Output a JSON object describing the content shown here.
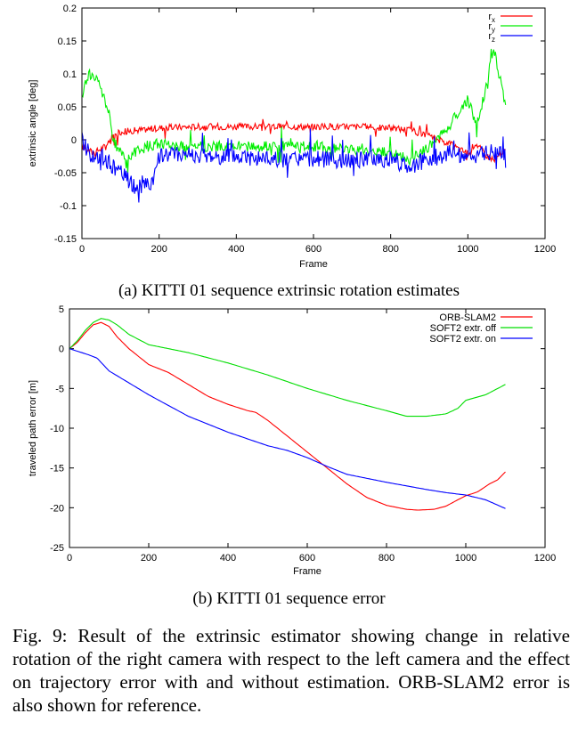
{
  "charts": [
    {
      "type": "line",
      "title": "",
      "subcaption": "(a) KITTI 01 sequence extrinsic rotation estimates",
      "xlabel": "Frame",
      "ylabel": "extrinsic angle [deg]",
      "xlim": [
        0,
        1200
      ],
      "ylim": [
        -0.15,
        0.2
      ],
      "xticks": [
        "0",
        "200",
        "400",
        "600",
        "800",
        "1000",
        "1200"
      ],
      "yticks": [
        "-0.15",
        "-0.1",
        "-0.05",
        "0",
        "0.05",
        "0.1",
        "0.15",
        "0.2"
      ],
      "legend": "top-right",
      "series": [
        {
          "name": "r",
          "sub": "x",
          "color": "#ff0000",
          "x": [
            0,
            30,
            60,
            80,
            100,
            150,
            200,
            300,
            400,
            500,
            600,
            700,
            800,
            850,
            900,
            950,
            980,
            1000,
            1020,
            1050,
            1070,
            1090,
            1100
          ],
          "y": [
            -0.01,
            -0.02,
            -0.01,
            0.005,
            0.012,
            0.015,
            0.018,
            0.02,
            0.02,
            0.02,
            0.02,
            0.02,
            0.018,
            0.015,
            0.005,
            -0.005,
            -0.015,
            -0.02,
            -0.005,
            -0.025,
            -0.03,
            -0.02,
            -0.015
          ],
          "noise": 0.005
        },
        {
          "name": "r",
          "sub": "y",
          "color": "#00ee00",
          "x": [
            0,
            10,
            20,
            40,
            60,
            70,
            80,
            100,
            120,
            150,
            200,
            250,
            300,
            400,
            500,
            600,
            700,
            800,
            850,
            900,
            950,
            980,
            1000,
            1010,
            1020,
            1030,
            1050,
            1060,
            1070,
            1080,
            1090,
            1100
          ],
          "y": [
            0.06,
            0.09,
            0.1,
            0.09,
            0.06,
            0.04,
            0.0,
            -0.02,
            -0.025,
            -0.015,
            -0.005,
            -0.01,
            -0.01,
            -0.01,
            -0.01,
            -0.01,
            -0.015,
            -0.02,
            -0.03,
            -0.01,
            0.02,
            0.045,
            0.06,
            0.045,
            0.02,
            0.04,
            0.085,
            0.13,
            0.135,
            0.1,
            0.08,
            0.055
          ],
          "noise": 0.008
        },
        {
          "name": "r",
          "sub": "z",
          "color": "#0000ff",
          "x": [
            0,
            20,
            40,
            60,
            80,
            100,
            120,
            140,
            160,
            180,
            200,
            250,
            300,
            400,
            500,
            600,
            700,
            800,
            850,
            900,
            950,
            1000,
            1050,
            1100
          ],
          "y": [
            0.0,
            -0.02,
            -0.03,
            -0.03,
            -0.04,
            -0.05,
            -0.06,
            -0.075,
            -0.065,
            -0.07,
            -0.025,
            -0.02,
            -0.025,
            -0.025,
            -0.03,
            -0.03,
            -0.03,
            -0.03,
            -0.04,
            -0.03,
            -0.02,
            -0.025,
            -0.02,
            -0.02
          ],
          "noise": 0.013
        }
      ]
    },
    {
      "type": "line",
      "title": "",
      "subcaption": "(b) KITTI 01 sequence error",
      "xlabel": "Frame",
      "ylabel": "traveled path error [m]",
      "xlim": [
        0,
        1200
      ],
      "ylim": [
        -25,
        5
      ],
      "xticks": [
        "0",
        "200",
        "400",
        "600",
        "800",
        "1000",
        "1200"
      ],
      "yticks": [
        "-25",
        "-20",
        "-15",
        "-10",
        "-5",
        "0",
        "5"
      ],
      "legend": "top-right",
      "series": [
        {
          "name": "ORB-SLAM2",
          "color": "#ff0000",
          "x": [
            0,
            20,
            40,
            60,
            80,
            100,
            120,
            150,
            200,
            250,
            300,
            350,
            400,
            450,
            470,
            500,
            550,
            600,
            650,
            700,
            750,
            800,
            850,
            880,
            920,
            950,
            980,
            1000,
            1030,
            1060,
            1080,
            1100
          ],
          "y": [
            0,
            0.8,
            2.0,
            3.0,
            3.3,
            2.8,
            1.5,
            0.0,
            -2.0,
            -3.0,
            -4.5,
            -6.0,
            -7.0,
            -7.8,
            -8.0,
            -9.0,
            -11.0,
            -13.0,
            -15.0,
            -17.0,
            -18.7,
            -19.7,
            -20.2,
            -20.3,
            -20.2,
            -19.8,
            -19.0,
            -18.5,
            -18.0,
            -17.0,
            -16.5,
            -15.5
          ]
        },
        {
          "name": "SOFT2 extr. off",
          "color": "#00dd00",
          "x": [
            0,
            20,
            40,
            60,
            80,
            100,
            120,
            150,
            200,
            250,
            300,
            400,
            500,
            600,
            700,
            800,
            850,
            900,
            950,
            980,
            1000,
            1050,
            1100
          ],
          "y": [
            0,
            1.0,
            2.3,
            3.3,
            3.8,
            3.6,
            3.0,
            1.8,
            0.5,
            0.0,
            -0.5,
            -1.8,
            -3.3,
            -5.0,
            -6.5,
            -7.8,
            -8.5,
            -8.5,
            -8.2,
            -7.5,
            -6.5,
            -5.8,
            -4.5
          ]
        },
        {
          "name": "SOFT2 extr. on",
          "color": "#0000ff",
          "x": [
            0,
            50,
            70,
            100,
            150,
            200,
            300,
            400,
            500,
            550,
            600,
            650,
            700,
            800,
            900,
            950,
            1000,
            1050,
            1100
          ],
          "y": [
            0,
            -0.8,
            -1.2,
            -2.8,
            -4.3,
            -5.8,
            -8.5,
            -10.5,
            -12.2,
            -12.8,
            -13.7,
            -14.8,
            -15.8,
            -16.8,
            -17.7,
            -18.1,
            -18.4,
            -19.0,
            -20.1
          ]
        }
      ]
    }
  ],
  "figure_caption": "Fig. 9: Result of the extrinsic estimator showing change in relative rotation of the right camera with respect to the left camera and the effect on trajectory error with and without estimation. ORB-SLAM2 error is also shown for reference."
}
